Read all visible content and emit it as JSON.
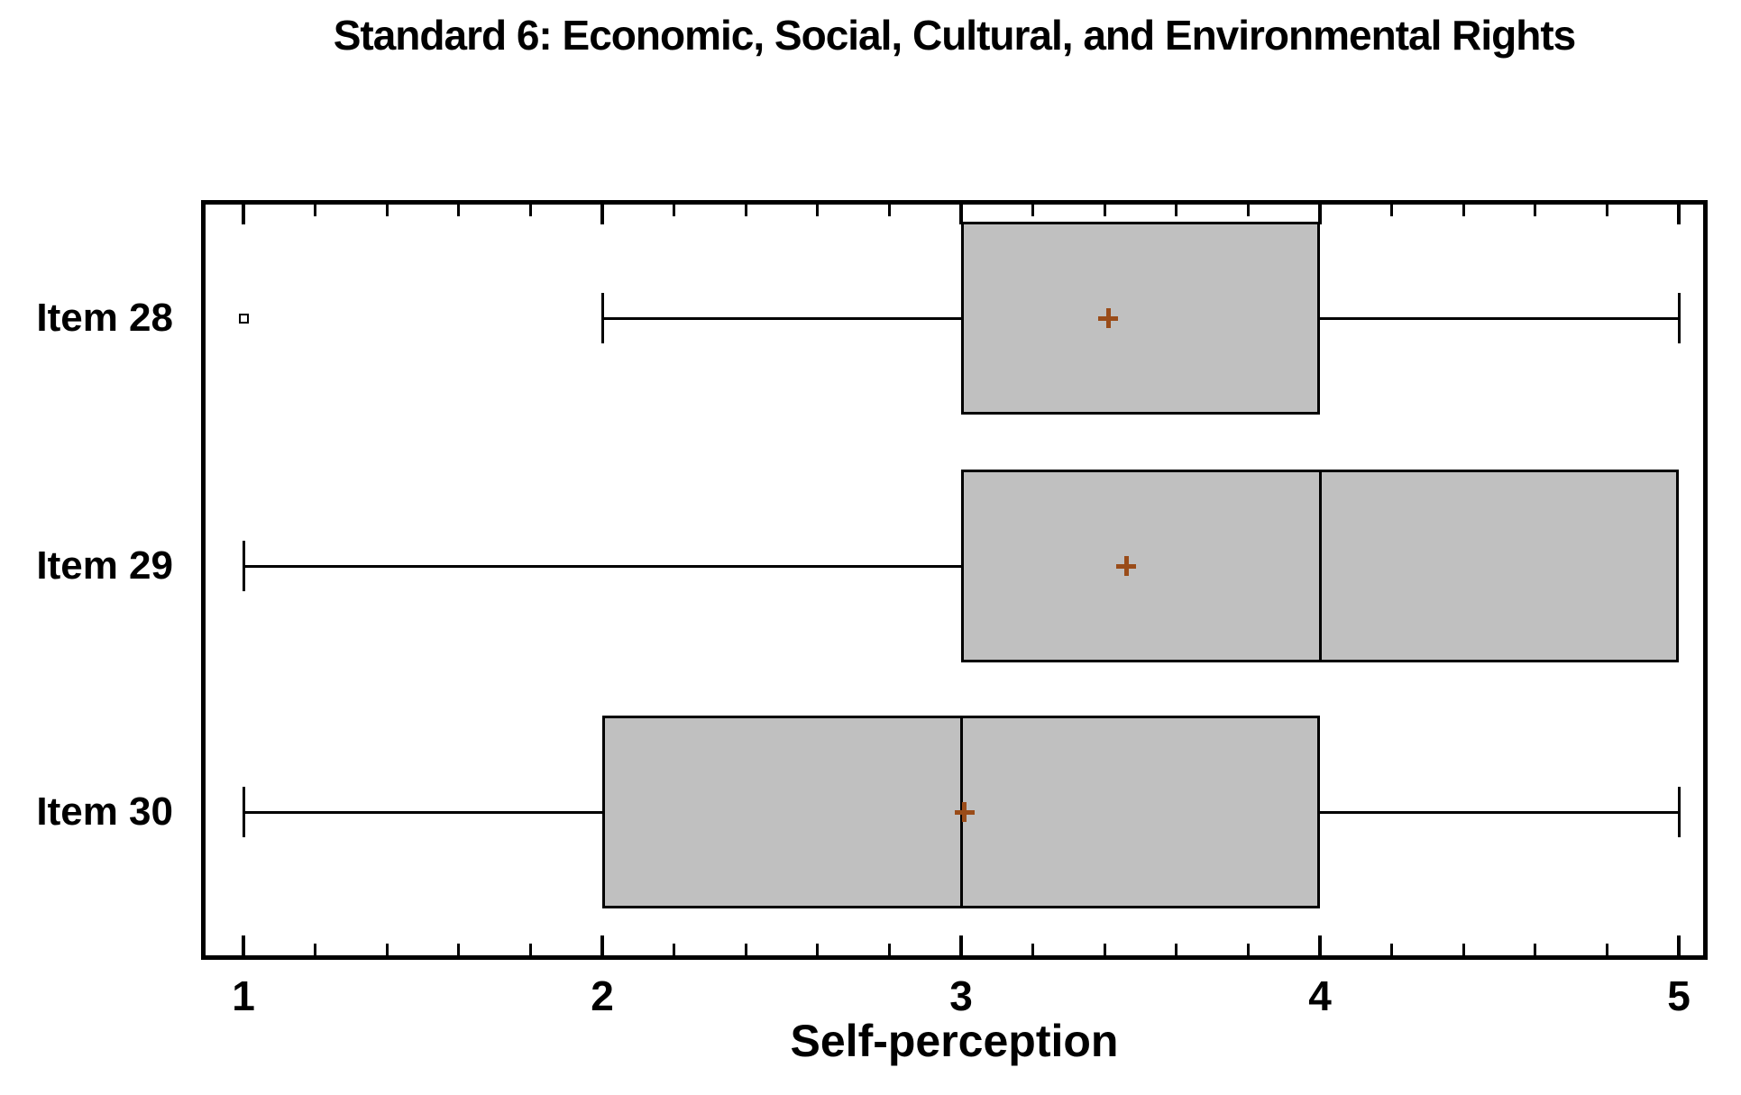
{
  "colors": {
    "background": "#FFFFFF",
    "line": "#000000",
    "box_fill": "#C0C0C0",
    "mean_marker": "#9A4C19"
  },
  "chart_data": {
    "type": "boxplot",
    "orientation": "horizontal",
    "title": "Standard 6: Economic, Social, Cultural, and Environmental Rights",
    "xlabel": "Self-perception",
    "ylabel": "",
    "xlim": [
      0.88,
      5.08
    ],
    "x_major_ticks": [
      1,
      2,
      3,
      4,
      5
    ],
    "x_major_tick_labels": [
      "1",
      "2",
      "3",
      "4",
      "5"
    ],
    "x_minor_tick_step": 0.2,
    "grid": false,
    "legend": false,
    "categories": [
      "Item 28",
      "Item 29",
      "Item 30"
    ],
    "series": [
      {
        "label": "Item 28",
        "whisker_low": 2,
        "q1": 3,
        "median": null,
        "q3": 4,
        "whisker_high": 5,
        "mean": 3.41,
        "outliers": [
          1
        ]
      },
      {
        "label": "Item 29",
        "whisker_low": 1,
        "q1": 3,
        "median": 4,
        "q3": 5,
        "whisker_high": 5,
        "mean": 3.46,
        "outliers": []
      },
      {
        "label": "Item 30",
        "whisker_low": 1,
        "q1": 2,
        "median": 3,
        "q3": 4,
        "whisker_high": 5,
        "mean": 3.01,
        "outliers": []
      }
    ]
  }
}
